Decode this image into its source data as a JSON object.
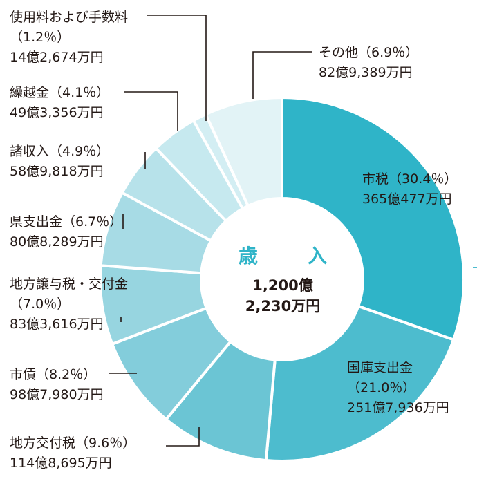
{
  "center": {
    "title": "歳　入",
    "total_line1": "1,200億",
    "total_line2": "2,230万円"
  },
  "chart_data": {
    "type": "pie",
    "title": "歳入",
    "total": "1,200億2,230万円",
    "slices": [
      {
        "name": "市税",
        "percent": 30.4,
        "pct_label": "（30.4％）",
        "amount": "365億477万円",
        "color": "#2fb4c8"
      },
      {
        "name": "国庫支出金",
        "percent": 21.0,
        "pct_label": "（21.0％）",
        "amount": "251億7,936万円",
        "color": "#4dbcce"
      },
      {
        "name": "地方交付税",
        "percent": 9.6,
        "pct_label": "（9.6％）",
        "amount": "114億8,695万円",
        "color": "#6bc5d4"
      },
      {
        "name": "市債",
        "percent": 8.2,
        "pct_label": "（8.2％）",
        "amount": "98億7,980万円",
        "color": "#83cddb"
      },
      {
        "name": "地方譲与税・交付金",
        "percent": 7.0,
        "pct_label": "（7.0％）",
        "amount": "83億3,616万円",
        "color": "#97d5e0"
      },
      {
        "name": "県支出金",
        "percent": 6.7,
        "pct_label": "（6.7％）",
        "amount": "80億8,289万円",
        "color": "#a7dbe5"
      },
      {
        "name": "諸収入",
        "percent": 4.9,
        "pct_label": "（4.9％）",
        "amount": "58億9,818万円",
        "color": "#b7e2ea"
      },
      {
        "name": "繰越金",
        "percent": 4.1,
        "pct_label": "（4.1％）",
        "amount": "49億3,356万円",
        "color": "#c6e9ef"
      },
      {
        "name": "使用料および手数料",
        "percent": 1.2,
        "pct_label": "（1.2％）",
        "amount": "14億2,674万円",
        "color": "#d3eef3"
      },
      {
        "name": "その他",
        "percent": 6.9,
        "pct_label": "（6.9％）",
        "amount": "82億9,389万円",
        "color": "#e2f3f6"
      }
    ]
  }
}
